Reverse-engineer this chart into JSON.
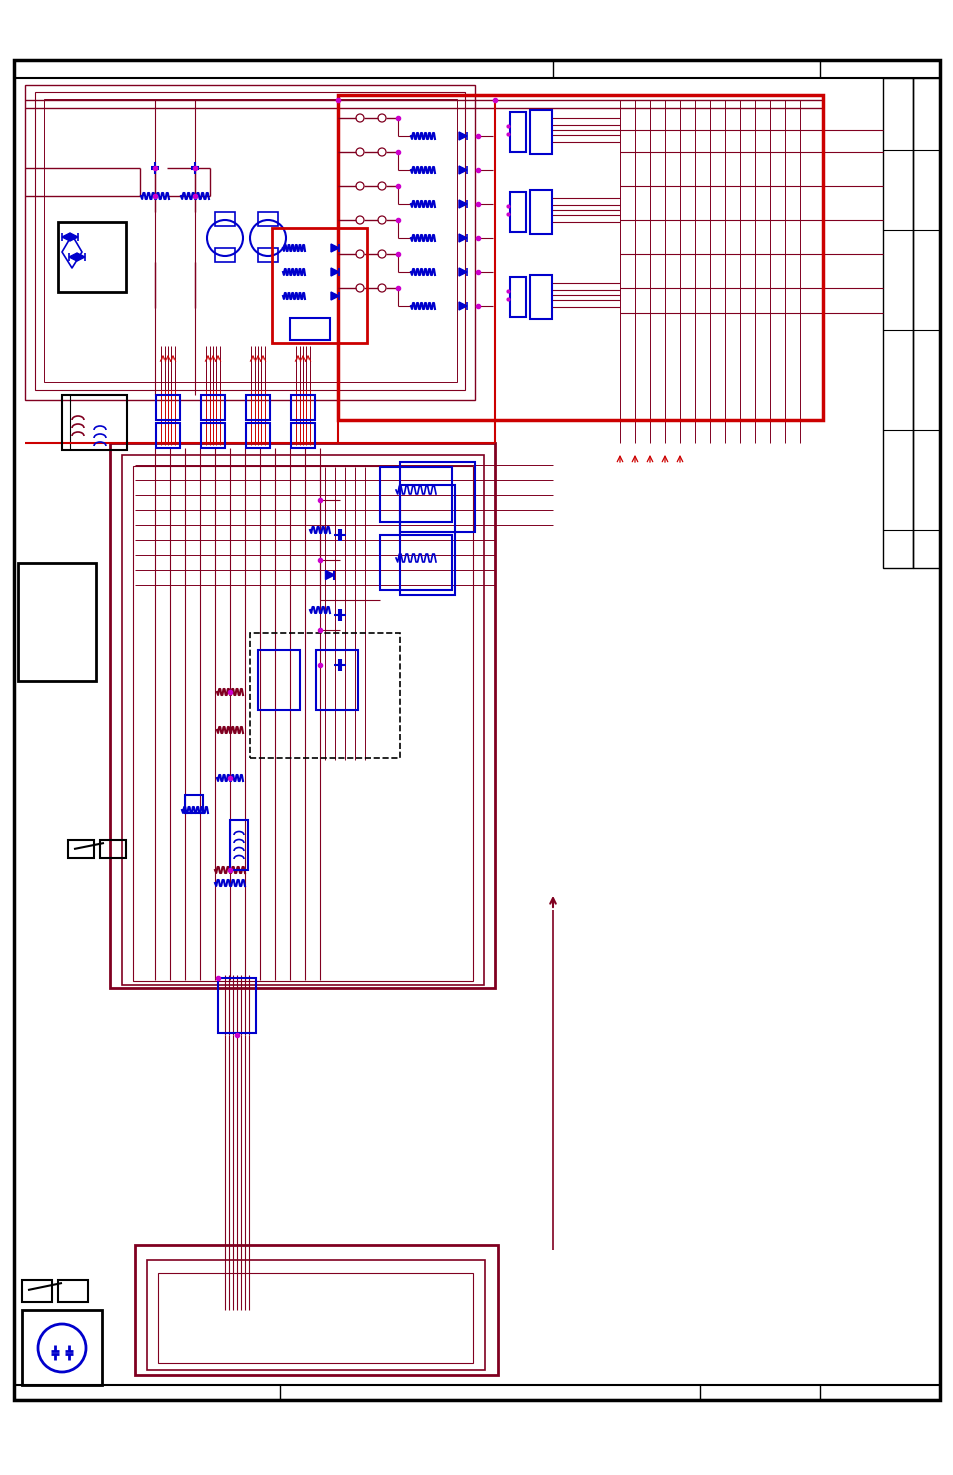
{
  "bg": "#ffffff",
  "K": "#000000",
  "R": "#800020",
  "RED": "#cc0000",
  "BL": "#0000cc",
  "MG": "#cc00cc"
}
